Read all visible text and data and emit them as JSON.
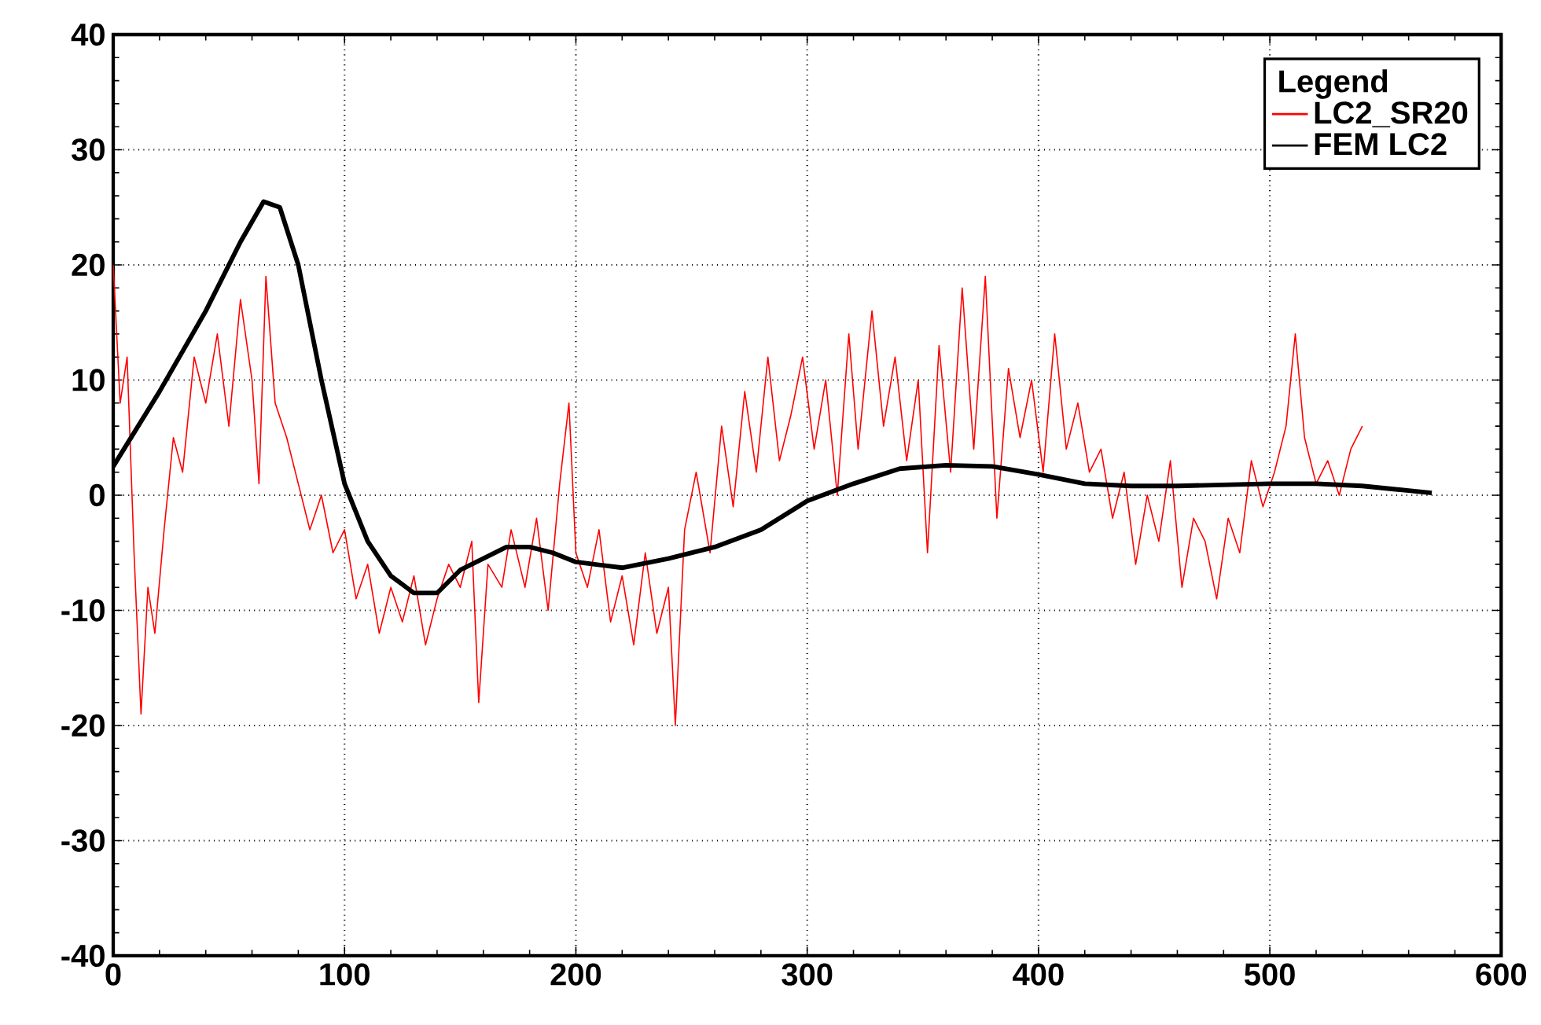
{
  "chart_data": {
    "type": "line",
    "legend_title": "Legend",
    "xlim": [
      0,
      600
    ],
    "ylim": [
      -40,
      40
    ],
    "xticks": [
      0,
      100,
      200,
      300,
      400,
      500,
      600
    ],
    "yticks": [
      -40,
      -30,
      -20,
      -10,
      0,
      10,
      20,
      30,
      40
    ],
    "grid": true,
    "legend": "top right",
    "series": [
      {
        "name": "LC2_SR20",
        "color": "#ff0000",
        "x": [
          0,
          3,
          6,
          9,
          12,
          15,
          18,
          22,
          26,
          30,
          35,
          40,
          45,
          50,
          55,
          60,
          63,
          66,
          70,
          75,
          80,
          85,
          90,
          95,
          100,
          105,
          110,
          115,
          120,
          125,
          130,
          135,
          140,
          145,
          150,
          155,
          158,
          162,
          168,
          172,
          178,
          183,
          188,
          193,
          197,
          200,
          205,
          210,
          215,
          220,
          225,
          230,
          235,
          240,
          243,
          247,
          252,
          258,
          263,
          268,
          273,
          278,
          283,
          288,
          293,
          298,
          303,
          308,
          313,
          318,
          322,
          328,
          333,
          338,
          343,
          348,
          352,
          357,
          362,
          367,
          372,
          377,
          382,
          387,
          392,
          397,
          402,
          407,
          412,
          417,
          422,
          427,
          432,
          437,
          442,
          447,
          452,
          457,
          462,
          467,
          472,
          477,
          482,
          487,
          492,
          497,
          502,
          507,
          511,
          515,
          520,
          525,
          530,
          535,
          540
        ],
        "values": [
          20,
          8,
          12,
          -5,
          -19,
          -8,
          -12,
          -3,
          5,
          2,
          12,
          8,
          14,
          6,
          17,
          10,
          1,
          19,
          8,
          5,
          1,
          -3,
          0,
          -5,
          -3,
          -9,
          -6,
          -12,
          -8,
          -11,
          -7,
          -13,
          -9,
          -6,
          -8,
          -4,
          -18,
          -6,
          -8,
          -3,
          -8,
          -2,
          -10,
          1,
          8,
          -5,
          -8,
          -3,
          -11,
          -7,
          -13,
          -5,
          -12,
          -8,
          -20,
          -3,
          2,
          -5,
          6,
          -1,
          9,
          2,
          12,
          3,
          7,
          12,
          4,
          10,
          0,
          14,
          4,
          16,
          6,
          12,
          3,
          10,
          -5,
          13,
          2,
          18,
          4,
          19,
          -2,
          11,
          5,
          10,
          2,
          14,
          4,
          8,
          2,
          4,
          -2,
          2,
          -6,
          0,
          -4,
          3,
          -8,
          -2,
          -4,
          -9,
          -2,
          -5,
          3,
          -1,
          2,
          6,
          14,
          5,
          1,
          3,
          0,
          4,
          6
        ]
      },
      {
        "name": "FEM LC2",
        "color": "#000000",
        "x": [
          0,
          20,
          40,
          55,
          65,
          72,
          80,
          90,
          100,
          110,
          120,
          130,
          140,
          150,
          160,
          170,
          180,
          190,
          200,
          220,
          240,
          260,
          280,
          300,
          320,
          340,
          360,
          380,
          400,
          420,
          440,
          460,
          480,
          500,
          520,
          540,
          560,
          570
        ],
        "values": [
          2.5,
          9,
          16,
          22,
          25.5,
          25,
          20,
          10,
          1,
          -4,
          -7,
          -8.5,
          -8.5,
          -6.5,
          -5.5,
          -4.5,
          -4.5,
          -5,
          -5.8,
          -6.3,
          -5.5,
          -4.5,
          -3,
          -0.5,
          1,
          2.3,
          2.6,
          2.5,
          1.8,
          1,
          0.8,
          0.8,
          0.9,
          1,
          1,
          0.8,
          0.4,
          0.2
        ]
      }
    ]
  }
}
